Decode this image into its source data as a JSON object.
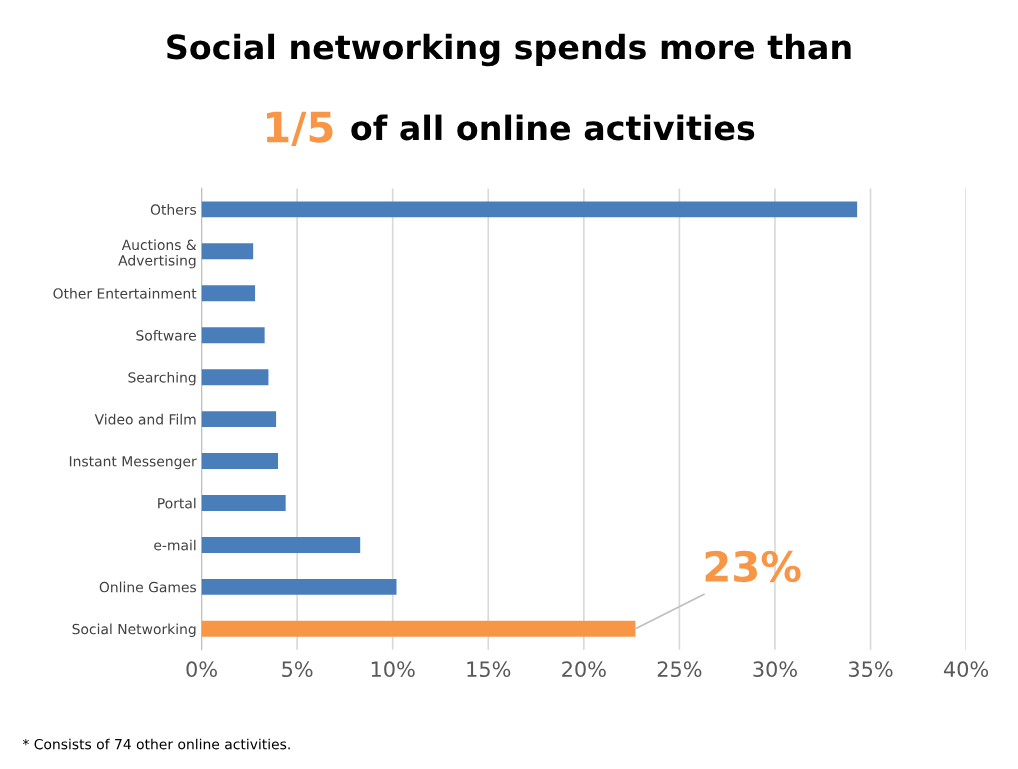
{
  "chart_data": {
    "type": "bar",
    "orientation": "horizontal",
    "title": "Social networking spends more than\n1/5 of all online activities",
    "categories": [
      "Others",
      "Auctions &\nAdvertising",
      "Other Entertainment",
      "Software",
      "Searching",
      "Video and Film",
      "Instant Messenger",
      "Portal",
      "e-mail",
      "Online Games",
      "Social Networking"
    ],
    "values": [
      34.3,
      2.7,
      2.8,
      3.3,
      3.5,
      3.9,
      4.0,
      4.4,
      8.3,
      10.2,
      22.7
    ],
    "colors": [
      "#4a7ebb",
      "#4a7ebb",
      "#4a7ebb",
      "#4a7ebb",
      "#4a7ebb",
      "#4a7ebb",
      "#4a7ebb",
      "#4a7ebb",
      "#4a7ebb",
      "#4a7ebb",
      "#f79646"
    ],
    "xlim": [
      0,
      40
    ],
    "xticks": [
      {
        "value": 0,
        "label": "0%"
      },
      {
        "value": 5,
        "label": "5%"
      },
      {
        "value": 10,
        "label": "10%"
      },
      {
        "value": 15,
        "label": "15%"
      },
      {
        "value": 20,
        "label": "20%"
      },
      {
        "value": 25,
        "label": "25%"
      },
      {
        "value": 30,
        "label": "30%"
      },
      {
        "value": 35,
        "label": "35%"
      },
      {
        "value": 40,
        "label": "40%"
      }
    ],
    "grid": "x",
    "annotations": [
      {
        "text": "23%",
        "x": 22.7,
        "y": "Social Networking"
      },
      "* Consists of 74 other online activities."
    ]
  }
}
